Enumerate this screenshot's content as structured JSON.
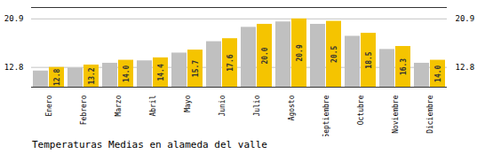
{
  "chart_data": {
    "type": "bar",
    "title": "Temperaturas Medias en alameda del valle",
    "categories": [
      "Enero",
      "Febrero",
      "Marzo",
      "Abril",
      "Mayo",
      "Junio",
      "Julio",
      "Agosto",
      "Septiembre",
      "Octubre",
      "Noviembre",
      "Diciembre"
    ],
    "series": [
      {
        "color": "#C0C0C0",
        "values": [
          12.2,
          12.7,
          13.5,
          13.9,
          15.2,
          17.1,
          19.5,
          20.4,
          20.0,
          18.0,
          15.8,
          13.5
        ]
      },
      {
        "color": "#F5C400",
        "values": [
          12.8,
          13.2,
          14.0,
          14.4,
          15.7,
          17.6,
          20.0,
          20.9,
          20.5,
          18.5,
          16.3,
          14.0
        ],
        "data_labels": true,
        "value_labels": [
          "12.8",
          "13.2",
          "14.0",
          "14.4",
          "15.7",
          "17.6",
          "20.0",
          "20.9",
          "20.5",
          "18.5",
          "16.3",
          "14.0"
        ]
      }
    ],
    "ylim": [
      9.5,
      22.8
    ],
    "yticks": [
      12.8,
      20.9
    ],
    "y2lim": [
      9.5,
      22.8
    ],
    "y2ticks": [
      12.8,
      20.9
    ],
    "grid": true
  }
}
